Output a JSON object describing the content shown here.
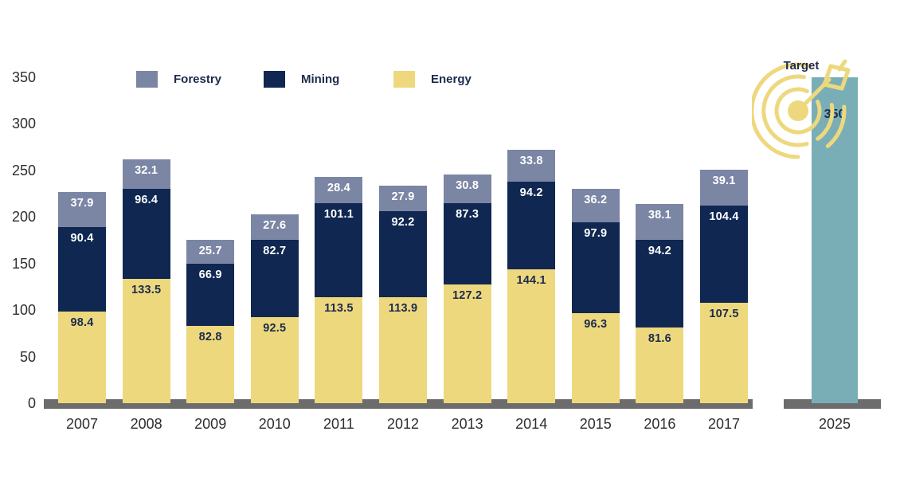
{
  "colors": {
    "forestry": "#7b86a5",
    "mining": "#0f2751",
    "energy": "#eed87e",
    "target_bar": "#79aeb6",
    "axis_gray": "#6b6c6b",
    "dark_ink": "#1b2b4d",
    "label_on_dark": "#ffffff",
    "background": "#ffffff"
  },
  "legend": {
    "items": [
      {
        "label": "Forestry",
        "color": "#7b86a5"
      },
      {
        "label": "Mining",
        "color": "#0f2751"
      },
      {
        "label": "Energy",
        "color": "#eed87e"
      }
    ]
  },
  "chart_data": {
    "type": "bar",
    "stacked": true,
    "title": "",
    "xlabel": "",
    "ylabel": "",
    "categories": [
      "2007",
      "2008",
      "2009",
      "2010",
      "2011",
      "2012",
      "2013",
      "2014",
      "2015",
      "2016",
      "2017"
    ],
    "series": [
      {
        "name": "Energy",
        "color": "#eed87e",
        "label_color": "#1b2b4d",
        "values": [
          98.4,
          133.5,
          82.8,
          92.5,
          113.5,
          113.9,
          127.2,
          144.1,
          96.3,
          81.6,
          107.5
        ]
      },
      {
        "name": "Mining",
        "color": "#0f2751",
        "label_color": "#ffffff",
        "values": [
          90.4,
          96.4,
          66.9,
          82.7,
          101.1,
          92.2,
          87.3,
          94.2,
          97.9,
          94.2,
          104.4
        ]
      },
      {
        "name": "Forestry",
        "color": "#7b86a5",
        "label_color": "#ffffff",
        "values": [
          37.9,
          32.1,
          25.7,
          27.6,
          28.4,
          27.9,
          30.8,
          33.8,
          36.2,
          38.1,
          39.1
        ]
      }
    ],
    "yticks": [
      0,
      50,
      100,
      150,
      200,
      250,
      300,
      350
    ],
    "ylim": [
      0,
      350
    ],
    "grid": false,
    "legend_position": "top",
    "target": {
      "label": "Target",
      "category": "2025",
      "value": 350,
      "value_label": "350",
      "bar_color": "#79aeb6",
      "icon": "dartboard-arrow-icon"
    }
  }
}
